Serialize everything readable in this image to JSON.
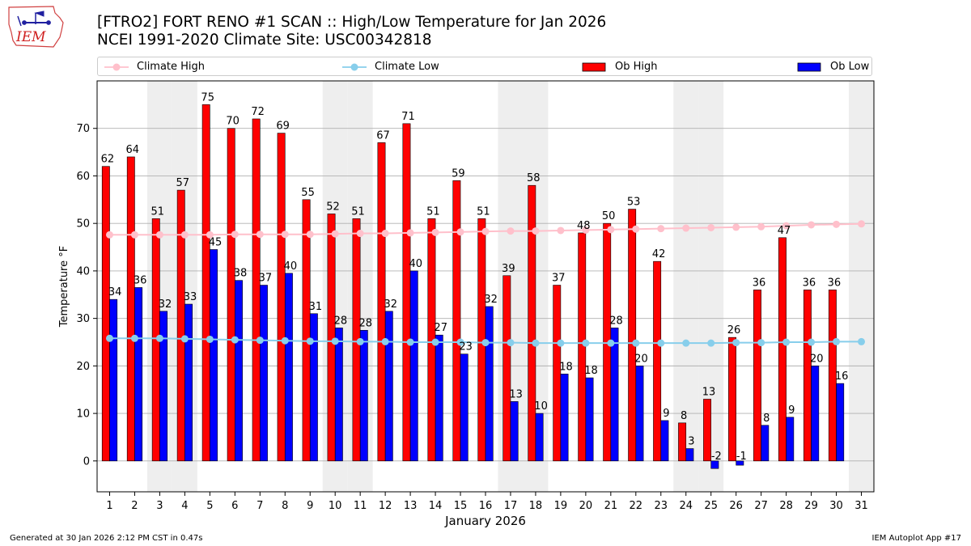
{
  "header": {
    "title_line1": "[FTRO2] FORT RENO #1 SCAN :: High/Low Temperature for Jan 2026",
    "title_line2": "NCEI 1991-2020 Climate Site: USC00342818",
    "logo_text": "IEM"
  },
  "legend": {
    "climate_high": "Climate High",
    "climate_low": "Climate Low",
    "ob_high": "Ob High",
    "ob_low": "Ob Low"
  },
  "footer": {
    "generated": "Generated at 30 Jan 2026 2:12 PM CST in 0.47s",
    "app": "IEM Autoplot App #17"
  },
  "colors": {
    "ob_high": "#ff0000",
    "ob_low": "#0000ff",
    "climate_high": "#ffc0cb",
    "climate_low": "#87ceeb",
    "weekend_band": "#eeeeee",
    "grid": "#b0b0b0"
  },
  "chart_data": {
    "type": "bar",
    "title": "[FTRO2] FORT RENO #1 SCAN :: High/Low Temperature for Jan 2026",
    "xlabel": "January 2026",
    "ylabel": "Temperature °F",
    "ylim": [
      -6.5,
      80
    ],
    "yticks": [
      0,
      10,
      20,
      30,
      40,
      50,
      60,
      70
    ],
    "grid": true,
    "legend_position": "top",
    "categories": [
      "1",
      "2",
      "3",
      "4",
      "5",
      "6",
      "7",
      "8",
      "9",
      "10",
      "11",
      "12",
      "13",
      "14",
      "15",
      "16",
      "17",
      "18",
      "19",
      "20",
      "21",
      "22",
      "23",
      "24",
      "25",
      "26",
      "27",
      "28",
      "29",
      "30",
      "31"
    ],
    "weekend_days": [
      3,
      4,
      10,
      11,
      17,
      18,
      24,
      25,
      31
    ],
    "series": [
      {
        "name": "Ob High",
        "kind": "bar",
        "values": [
          62,
          64,
          51,
          57,
          75,
          70,
          72,
          69,
          55,
          52,
          51,
          67,
          71,
          51,
          59,
          51,
          39,
          58,
          37,
          48,
          50,
          53,
          42,
          8,
          13,
          26,
          36,
          47,
          36,
          36,
          null
        ],
        "labels": [
          "62",
          "64",
          "51",
          "57",
          "75",
          "70",
          "72",
          "69",
          "55",
          "52",
          "51",
          "67",
          "71",
          "51",
          "59",
          "51",
          "39",
          "58",
          "37",
          "48",
          "50",
          "53",
          "42",
          "8",
          "13",
          "26",
          "36",
          "47",
          "36",
          "36",
          ""
        ]
      },
      {
        "name": "Ob Low",
        "kind": "bar",
        "values": [
          34,
          36.5,
          31.5,
          33,
          44.5,
          38,
          37,
          39.5,
          31,
          28,
          27.5,
          31.5,
          40,
          26.5,
          22.5,
          32.5,
          12.5,
          10,
          18.3,
          17.5,
          28,
          20,
          8.5,
          2.6,
          -1.6,
          -0.9,
          7.5,
          9.2,
          20,
          16.3,
          null
        ],
        "labels": [
          "34",
          "36",
          "32",
          "33",
          "45",
          "38",
          "37",
          "40",
          "31",
          "28",
          "28",
          "32",
          "40",
          "27",
          "23",
          "32",
          "13",
          "10",
          "18",
          "18",
          "28",
          "20",
          "9",
          "3",
          "-2",
          "-1",
          "8",
          "9",
          "20",
          "16",
          ""
        ]
      },
      {
        "name": "Climate High",
        "kind": "line",
        "values": [
          47.6,
          47.6,
          47.6,
          47.6,
          47.6,
          47.7,
          47.7,
          47.7,
          47.7,
          47.8,
          47.9,
          47.9,
          48.0,
          48.1,
          48.2,
          48.3,
          48.4,
          48.4,
          48.5,
          48.6,
          48.7,
          48.8,
          48.9,
          49.0,
          49.1,
          49.2,
          49.3,
          49.5,
          49.7,
          49.8,
          49.9
        ]
      },
      {
        "name": "Climate Low",
        "kind": "line",
        "values": [
          25.8,
          25.8,
          25.8,
          25.7,
          25.6,
          25.5,
          25.4,
          25.3,
          25.2,
          25.2,
          25.1,
          25.1,
          25.0,
          25.0,
          25.0,
          24.9,
          24.9,
          24.8,
          24.8,
          24.8,
          24.8,
          24.8,
          24.8,
          24.8,
          24.8,
          24.9,
          24.9,
          25.0,
          25.0,
          25.1,
          25.1
        ]
      }
    ]
  }
}
